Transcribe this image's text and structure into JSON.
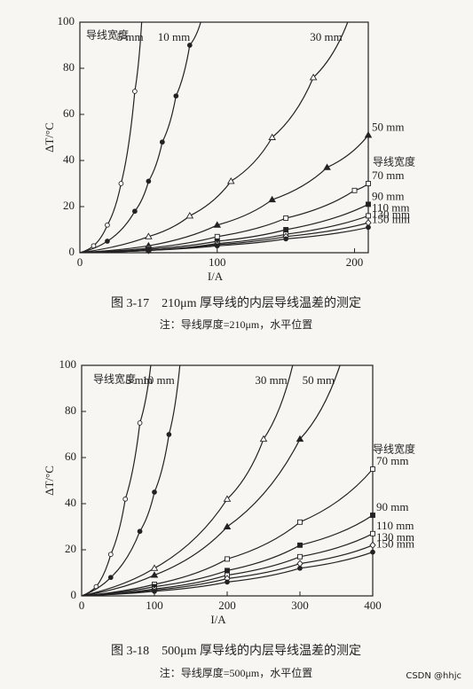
{
  "chart_data": [
    {
      "type": "line",
      "xlabel": "I/A",
      "ylabel": "ΔT/°C",
      "xlim": [
        0,
        210
      ],
      "ylim": [
        0,
        100
      ],
      "xticks": [
        0,
        100,
        200
      ],
      "yticks": [
        0,
        20,
        40,
        60,
        80,
        100
      ],
      "annotations": [
        "导线宽度",
        "导线宽度"
      ],
      "caption": "图 3-17　210μm 厚导线的内层导线温差的测定",
      "note": "注：导线厚度=210μm，水平位置",
      "series": [
        {
          "name": "5 mm",
          "x": [
            0,
            10,
            20,
            30,
            40,
            45
          ],
          "values": [
            0,
            3,
            12,
            30,
            70,
            100
          ]
        },
        {
          "name": "10 mm",
          "x": [
            0,
            20,
            40,
            50,
            60,
            70,
            80,
            88
          ],
          "values": [
            0,
            5,
            18,
            31,
            48,
            68,
            90,
            100
          ]
        },
        {
          "name": "30 mm",
          "x": [
            0,
            50,
            80,
            110,
            140,
            170,
            195
          ],
          "values": [
            0,
            7,
            16,
            31,
            50,
            76,
            100
          ]
        },
        {
          "name": "50 mm",
          "x": [
            0,
            50,
            100,
            140,
            180,
            210
          ],
          "values": [
            0,
            3,
            12,
            23,
            37,
            51
          ]
        },
        {
          "name": "70 mm",
          "x": [
            0,
            50,
            100,
            150,
            200,
            210
          ],
          "values": [
            0,
            2,
            7,
            15,
            27,
            30
          ]
        },
        {
          "name": "90 mm",
          "x": [
            0,
            50,
            100,
            150,
            210
          ],
          "values": [
            0,
            1.5,
            5,
            10,
            21
          ]
        },
        {
          "name": "110 mm",
          "x": [
            0,
            50,
            100,
            150,
            210
          ],
          "values": [
            0,
            1,
            4,
            8,
            16
          ]
        },
        {
          "name": "130 mm",
          "x": [
            0,
            50,
            100,
            150,
            210
          ],
          "values": [
            0,
            1,
            3.5,
            7,
            13
          ]
        },
        {
          "name": "150 mm",
          "x": [
            0,
            50,
            100,
            150,
            210
          ],
          "values": [
            0,
            1,
            3,
            6,
            11
          ]
        }
      ]
    },
    {
      "type": "line",
      "xlabel": "I/A",
      "ylabel": "ΔT/°C",
      "xlim": [
        0,
        400
      ],
      "ylim": [
        0,
        100
      ],
      "xticks": [
        0,
        100,
        200,
        300,
        400
      ],
      "yticks": [
        0,
        20,
        40,
        60,
        80,
        100
      ],
      "annotations": [
        "导线宽度",
        "导线宽度"
      ],
      "caption": "图 3-18　500μm 厚导线的内层导线温差的测定",
      "note": "注：导线厚度=500μm，水平位置",
      "series": [
        {
          "name": "5 mm",
          "x": [
            0,
            20,
            40,
            60,
            80,
            95
          ],
          "values": [
            0,
            4,
            18,
            42,
            75,
            100
          ]
        },
        {
          "name": "10 mm",
          "x": [
            0,
            40,
            80,
            100,
            120,
            135
          ],
          "values": [
            0,
            8,
            28,
            45,
            70,
            100
          ]
        },
        {
          "name": "30 mm",
          "x": [
            0,
            100,
            200,
            250,
            290
          ],
          "values": [
            0,
            12,
            42,
            68,
            100
          ]
        },
        {
          "name": "50 mm",
          "x": [
            0,
            100,
            200,
            300,
            355
          ],
          "values": [
            0,
            9,
            30,
            68,
            100
          ]
        },
        {
          "name": "70 mm",
          "x": [
            0,
            100,
            200,
            300,
            400
          ],
          "values": [
            0,
            5,
            16,
            32,
            55
          ]
        },
        {
          "name": "90 mm",
          "x": [
            0,
            100,
            200,
            300,
            400
          ],
          "values": [
            0,
            4,
            11,
            22,
            35
          ]
        },
        {
          "name": "110 mm",
          "x": [
            0,
            100,
            200,
            300,
            400
          ],
          "values": [
            0,
            3,
            9,
            17,
            27
          ]
        },
        {
          "name": "130 mm",
          "x": [
            0,
            100,
            200,
            300,
            400
          ],
          "values": [
            0,
            2.5,
            7.5,
            14,
            22
          ]
        },
        {
          "name": "150 mm",
          "x": [
            0,
            100,
            200,
            300,
            400
          ],
          "values": [
            0,
            2,
            6,
            12,
            19
          ]
        }
      ]
    }
  ],
  "watermark": "CSDN @hhjc"
}
